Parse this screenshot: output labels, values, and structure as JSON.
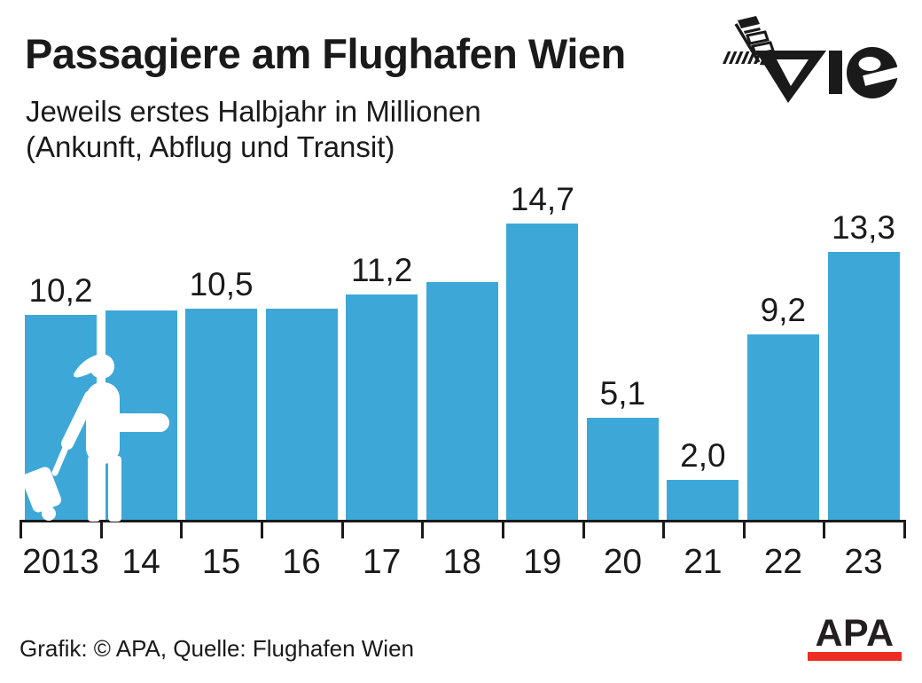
{
  "header": {
    "title": "Passagiere am Flughafen Wien",
    "subtitle_line1": "Jeweils erstes Halbjahr in Millionen",
    "subtitle_line2": "(Ankunft, Abflug und Transit)"
  },
  "logos": {
    "vie_letters": "vie",
    "apa_label": "APA",
    "apa_red": "#ed2d24",
    "logo_black": "#1a1a1a"
  },
  "chart_data": {
    "type": "bar",
    "categories": [
      "2013",
      "14",
      "15",
      "16",
      "17",
      "18",
      "19",
      "20",
      "21",
      "22",
      "23"
    ],
    "values": [
      10.2,
      10.4,
      10.5,
      10.5,
      11.2,
      11.8,
      14.7,
      5.1,
      2.0,
      9.2,
      13.3
    ],
    "bar_labels": [
      "10,2",
      "",
      "10,5",
      "",
      "11,2",
      "",
      "14,7",
      "5,1",
      "2,0",
      "9,2",
      "13,3"
    ],
    "title": "Passagiere am Flughafen Wien",
    "subtitle": "Jeweils erstes Halbjahr in Millionen (Ankunft, Abflug und Transit)",
    "xlabel": "",
    "ylabel": "",
    "ylim": [
      0,
      16
    ],
    "grid": false,
    "legend": "none",
    "bar_color": "#3da8d7",
    "axis_color": "#1a1a1a"
  },
  "footer": {
    "credit": "Grafik: © APA, Quelle: Flughafen Wien"
  }
}
